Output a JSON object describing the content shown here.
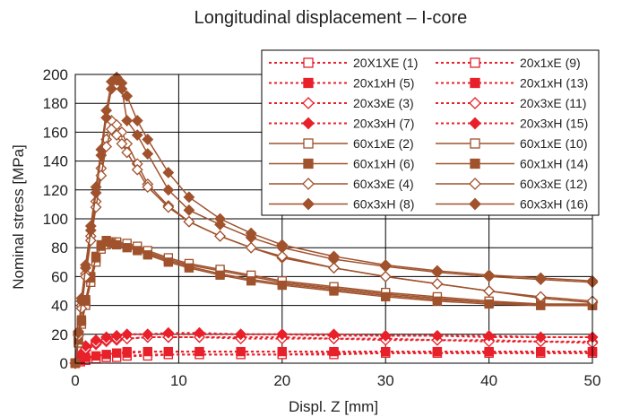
{
  "chart_data": {
    "type": "line",
    "title": "Longitudinal displacement – I-core",
    "xlabel": "Displ. Z [mm]",
    "ylabel": "Nominal stress [MPa]",
    "xlim": [
      0,
      50
    ],
    "ylim": [
      0,
      200
    ],
    "xticks": [
      "0",
      "10",
      "20",
      "30",
      "40",
      "50"
    ],
    "yticks": [
      "0",
      "20",
      "40",
      "60",
      "80",
      "100",
      "120",
      "140",
      "160",
      "180",
      "200"
    ],
    "grid": true,
    "legend_position": "top-right",
    "colors": {
      "red": "#e8202a",
      "brown": "#a0522d",
      "grid": "#000000"
    },
    "series": [
      {
        "name": "20X1XE (1)",
        "color": "#e8202a",
        "dash": true,
        "marker": "square-open",
        "x": [
          0,
          0.5,
          1,
          2,
          3,
          4,
          5,
          7,
          9,
          12,
          16,
          20,
          25,
          30,
          35,
          40,
          45,
          50
        ],
        "y": [
          0,
          1,
          2,
          3,
          4,
          5,
          5,
          6,
          6,
          6,
          6,
          6,
          7,
          7,
          7,
          7,
          7,
          7
        ]
      },
      {
        "name": "20x1xH (5)",
        "color": "#e8202a",
        "dash": true,
        "marker": "square-filled",
        "x": [
          0,
          0.5,
          1,
          2,
          3,
          4,
          5,
          7,
          9,
          12,
          16,
          20,
          25,
          30,
          35,
          40,
          45,
          50
        ],
        "y": [
          0,
          2,
          3,
          5,
          6,
          7,
          8,
          8,
          8,
          8,
          8,
          8,
          8,
          8,
          8,
          8,
          8,
          8
        ]
      },
      {
        "name": "20x3xE (3)",
        "color": "#e8202a",
        "dash": true,
        "marker": "diamond-open",
        "x": [
          0,
          0.5,
          1,
          2,
          3,
          4,
          5,
          7,
          9,
          12,
          16,
          20,
          25,
          30,
          35,
          40,
          45,
          50
        ],
        "y": [
          0,
          5,
          9,
          13,
          15,
          16,
          17,
          18,
          18,
          18,
          18,
          18,
          17,
          17,
          16,
          16,
          15,
          15
        ]
      },
      {
        "name": "20x3xH (7)",
        "color": "#e8202a",
        "dash": true,
        "marker": "diamond-filled",
        "x": [
          0,
          0.5,
          1,
          2,
          3,
          4,
          5,
          7,
          9,
          12,
          16,
          20,
          25,
          30,
          35,
          40,
          45,
          50
        ],
        "y": [
          0,
          6,
          11,
          15,
          18,
          19,
          20,
          20,
          20,
          20,
          20,
          20,
          19,
          19,
          19,
          18,
          18,
          18
        ]
      },
      {
        "name": "60x1xE (2)",
        "color": "#a0522d",
        "dash": false,
        "marker": "square-open",
        "x": [
          0,
          0.3,
          0.6,
          1,
          1.5,
          2,
          2.5,
          3,
          3.5,
          4,
          5,
          6,
          7,
          9,
          11,
          14,
          17,
          20,
          25,
          30,
          35,
          40,
          45,
          50
        ],
        "y": [
          0,
          15,
          28,
          42,
          58,
          72,
          80,
          83,
          84,
          83,
          82,
          80,
          77,
          72,
          68,
          64,
          60,
          56,
          52,
          48,
          45,
          42,
          40,
          40
        ]
      },
      {
        "name": "60x1xH (6)",
        "color": "#a0522d",
        "dash": false,
        "marker": "square-filled",
        "x": [
          0,
          0.3,
          0.6,
          1,
          1.5,
          2,
          2.5,
          3,
          3.5,
          4,
          5,
          6,
          7,
          9,
          11,
          14,
          17,
          20,
          25,
          30,
          35,
          40,
          45,
          50
        ],
        "y": [
          0,
          17,
          30,
          44,
          60,
          74,
          82,
          85,
          84,
          83,
          81,
          79,
          76,
          71,
          67,
          62,
          58,
          55,
          51,
          47,
          44,
          42,
          41,
          41
        ]
      },
      {
        "name": "60x3xE (4)",
        "color": "#a0522d",
        "dash": false,
        "marker": "diamond-open",
        "x": [
          0,
          0.3,
          0.6,
          1,
          1.5,
          2,
          2.5,
          3,
          3.5,
          4,
          4.5,
          5,
          6,
          7,
          9,
          11,
          14,
          17,
          20,
          25,
          30,
          35,
          40,
          45,
          50
        ],
        "y": [
          0,
          20,
          40,
          62,
          88,
          112,
          135,
          155,
          168,
          165,
          160,
          152,
          138,
          124,
          109,
          98,
          88,
          80,
          73,
          66,
          60,
          55,
          50,
          45,
          42
        ]
      },
      {
        "name": "60x3xH (8)",
        "color": "#a0522d",
        "dash": false,
        "marker": "diamond-filled",
        "x": [
          0,
          0.3,
          0.6,
          1,
          1.5,
          2,
          2.5,
          3,
          3.5,
          4,
          4.5,
          5,
          6,
          7,
          9,
          11,
          14,
          17,
          20,
          25,
          30,
          35,
          40,
          45,
          50
        ],
        "y": [
          0,
          22,
          45,
          68,
          95,
          122,
          148,
          175,
          195,
          198,
          190,
          168,
          158,
          145,
          120,
          106,
          96,
          87,
          80,
          72,
          67,
          63,
          60,
          58,
          56
        ]
      },
      {
        "name": "20x1xE (9)",
        "color": "#e8202a",
        "dash": true,
        "marker": "square-open",
        "x": [
          0,
          0.5,
          1,
          2,
          3,
          4,
          5,
          7,
          9,
          12,
          16,
          20,
          25,
          30,
          35,
          40,
          45,
          50
        ],
        "y": [
          0,
          1,
          2,
          3,
          4,
          4,
          5,
          5,
          6,
          6,
          6,
          6,
          6,
          7,
          7,
          7,
          7,
          7
        ]
      },
      {
        "name": "20x1xH (13)",
        "color": "#e8202a",
        "dash": true,
        "marker": "square-filled",
        "x": [
          0,
          0.5,
          1,
          2,
          3,
          4,
          5,
          7,
          9,
          12,
          16,
          20,
          25,
          30,
          35,
          40,
          45,
          50
        ],
        "y": [
          0,
          2,
          4,
          5,
          6,
          7,
          7,
          8,
          8,
          8,
          8,
          8,
          8,
          8,
          8,
          8,
          8,
          8
        ]
      },
      {
        "name": "20x3xE (11)",
        "color": "#e8202a",
        "dash": true,
        "marker": "diamond-open",
        "x": [
          0,
          0.5,
          1,
          2,
          3,
          4,
          5,
          7,
          9,
          12,
          16,
          20,
          25,
          30,
          35,
          40,
          45,
          50
        ],
        "y": [
          0,
          5,
          10,
          14,
          16,
          17,
          17,
          18,
          18,
          18,
          17,
          17,
          17,
          16,
          16,
          15,
          15,
          14
        ]
      },
      {
        "name": "20x3xH (15)",
        "color": "#e8202a",
        "dash": true,
        "marker": "diamond-filled",
        "x": [
          0,
          0.5,
          1,
          2,
          3,
          4,
          5,
          7,
          9,
          12,
          16,
          20,
          25,
          30,
          35,
          40,
          45,
          50
        ],
        "y": [
          0,
          6,
          12,
          16,
          18,
          19,
          20,
          20,
          21,
          21,
          20,
          20,
          20,
          19,
          19,
          19,
          18,
          18
        ]
      },
      {
        "name": "60x1xE (10)",
        "color": "#a0522d",
        "dash": false,
        "marker": "square-open",
        "x": [
          0,
          0.3,
          0.6,
          1,
          1.5,
          2,
          2.5,
          3,
          3.5,
          4,
          5,
          6,
          7,
          9,
          11,
          14,
          17,
          20,
          25,
          30,
          35,
          40,
          45,
          50
        ],
        "y": [
          0,
          14,
          27,
          40,
          56,
          70,
          79,
          82,
          84,
          84,
          83,
          81,
          78,
          73,
          69,
          65,
          61,
          57,
          53,
          49,
          46,
          43,
          41,
          40
        ]
      },
      {
        "name": "60x1xH (14)",
        "color": "#a0522d",
        "dash": false,
        "marker": "square-filled",
        "x": [
          0,
          0.3,
          0.6,
          1,
          1.5,
          2,
          2.5,
          3,
          3.5,
          4,
          5,
          6,
          7,
          9,
          11,
          14,
          17,
          20,
          25,
          30,
          35,
          40,
          45,
          50
        ],
        "y": [
          0,
          16,
          29,
          43,
          59,
          73,
          81,
          84,
          83,
          82,
          80,
          78,
          75,
          70,
          66,
          61,
          57,
          54,
          50,
          46,
          43,
          41,
          40,
          40
        ]
      },
      {
        "name": "60x3xE (12)",
        "color": "#a0522d",
        "dash": false,
        "marker": "diamond-open",
        "x": [
          0,
          0.3,
          0.6,
          1,
          1.5,
          2,
          2.5,
          3,
          3.5,
          4,
          4.5,
          5,
          6,
          7,
          9,
          11,
          14,
          17,
          20,
          25,
          30,
          35,
          40,
          45,
          50
        ],
        "y": [
          0,
          19,
          38,
          60,
          85,
          108,
          130,
          150,
          162,
          158,
          152,
          146,
          134,
          122,
          108,
          98,
          88,
          80,
          74,
          66,
          60,
          55,
          50,
          46,
          43
        ]
      },
      {
        "name": "60x3xH (16)",
        "color": "#a0522d",
        "dash": false,
        "marker": "diamond-filled",
        "x": [
          0,
          0.3,
          0.6,
          1,
          1.5,
          2,
          2.5,
          3,
          3.5,
          4,
          4.5,
          5,
          6,
          7,
          9,
          11,
          14,
          17,
          20,
          25,
          30,
          35,
          40,
          45,
          50
        ],
        "y": [
          0,
          21,
          43,
          66,
          92,
          118,
          144,
          170,
          190,
          196,
          194,
          185,
          168,
          155,
          132,
          115,
          100,
          90,
          82,
          74,
          68,
          64,
          61,
          59,
          57
        ]
      }
    ]
  }
}
